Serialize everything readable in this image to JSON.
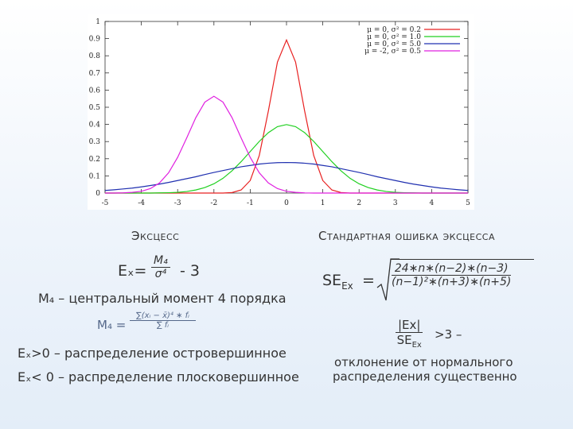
{
  "chart_data": {
    "type": "line",
    "x": [
      -5,
      -4.75,
      -4.5,
      -4.25,
      -4,
      -3.75,
      -3.5,
      -3.25,
      -3,
      -2.75,
      -2.5,
      -2.25,
      -2,
      -1.75,
      -1.5,
      -1.25,
      -1,
      -0.75,
      -0.5,
      -0.25,
      0,
      0.25,
      0.5,
      0.75,
      1,
      1.25,
      1.5,
      1.75,
      2,
      2.25,
      2.5,
      2.75,
      3,
      3.25,
      3.5,
      3.75,
      4,
      4.25,
      4.5,
      4.75,
      5
    ],
    "series": [
      {
        "name": "μ = 0, σ² = 0.2",
        "color": "#e82020",
        "values": [
          0,
          0,
          0,
          0,
          0,
          0,
          0,
          0,
          0,
          0,
          0,
          0,
          0,
          0,
          0.003,
          0.018,
          0.073,
          0.219,
          0.478,
          0.763,
          0.892,
          0.763,
          0.478,
          0.219,
          0.073,
          0.018,
          0.003,
          0,
          0,
          0,
          0,
          0,
          0,
          0,
          0,
          0,
          0,
          0,
          0,
          0,
          0
        ]
      },
      {
        "name": "μ = 0, σ² = 1.0",
        "color": "#20d020",
        "values": [
          0,
          0,
          0,
          0,
          0,
          0,
          0.001,
          0.002,
          0.004,
          0.009,
          0.018,
          0.032,
          0.054,
          0.086,
          0.13,
          0.183,
          0.242,
          0.301,
          0.352,
          0.387,
          0.399,
          0.387,
          0.352,
          0.301,
          0.242,
          0.183,
          0.13,
          0.086,
          0.054,
          0.032,
          0.018,
          0.009,
          0.004,
          0.002,
          0.001,
          0,
          0,
          0,
          0,
          0,
          0
        ]
      },
      {
        "name": "μ = 0, σ² = 5.0",
        "color": "#2030b0",
        "values": [
          0.015,
          0.019,
          0.024,
          0.029,
          0.036,
          0.044,
          0.052,
          0.062,
          0.073,
          0.084,
          0.095,
          0.108,
          0.12,
          0.131,
          0.142,
          0.153,
          0.161,
          0.169,
          0.174,
          0.177,
          0.178,
          0.177,
          0.174,
          0.169,
          0.161,
          0.153,
          0.142,
          0.131,
          0.12,
          0.108,
          0.095,
          0.084,
          0.073,
          0.062,
          0.052,
          0.044,
          0.036,
          0.029,
          0.024,
          0.019,
          0.015
        ]
      },
      {
        "name": "μ = -2, σ² = 0.5",
        "color": "#e020e0",
        "values": [
          0,
          0,
          0.001,
          0.004,
          0.01,
          0.026,
          0.059,
          0.118,
          0.208,
          0.321,
          0.439,
          0.53,
          0.564,
          0.53,
          0.439,
          0.321,
          0.208,
          0.118,
          0.059,
          0.026,
          0.01,
          0.004,
          0.001,
          0,
          0,
          0,
          0,
          0,
          0,
          0,
          0,
          0,
          0,
          0,
          0,
          0,
          0,
          0,
          0,
          0,
          0
        ]
      }
    ],
    "xlim": [
      -5,
      5
    ],
    "xticks": [
      -5,
      -4,
      -3,
      -2,
      -1,
      0,
      1,
      2,
      3,
      4,
      5
    ],
    "ylim": [
      0,
      1
    ],
    "yticks": [
      0,
      0.1,
      0.2,
      0.3,
      0.4,
      0.5,
      0.6,
      0.7,
      0.8,
      0.9,
      1
    ],
    "legend": "top-right"
  },
  "left": {
    "heading": "Эксцесс",
    "ex_lhs": "Eₓ=",
    "ex_num": "M₄",
    "ex_den": "σ⁴",
    "ex_tail": "- 3",
    "m4_desc": "M₄ – центральный момент 4 порядка",
    "m4_lhs": "M₄ =",
    "m4_num": "∑(xᵢ − x̄)⁴ ∗ fᵢ",
    "m4_den": "∑ fᵢ",
    "pos": "Eₓ>0 – распределение островершинное",
    "neg": "Eₓ< 0 – распределение плосковершинное"
  },
  "right": {
    "heading": "Стандартная ошибка эксцесса",
    "se_lhs": "SE",
    "se_sub": "Ex",
    "se_eq": "=",
    "se_num": "24∗n∗(n−2)∗(n−3)",
    "se_den": "(n−1)²∗(n+3)∗(n+5)",
    "ratio_num": "|Ex|",
    "ratio_den": "SE",
    "ratio_den_sub": "Ex",
    "ratio_tail": ">3 –",
    "conclusion_1": "отклонение от нормального",
    "conclusion_2": "распределения существенно"
  }
}
